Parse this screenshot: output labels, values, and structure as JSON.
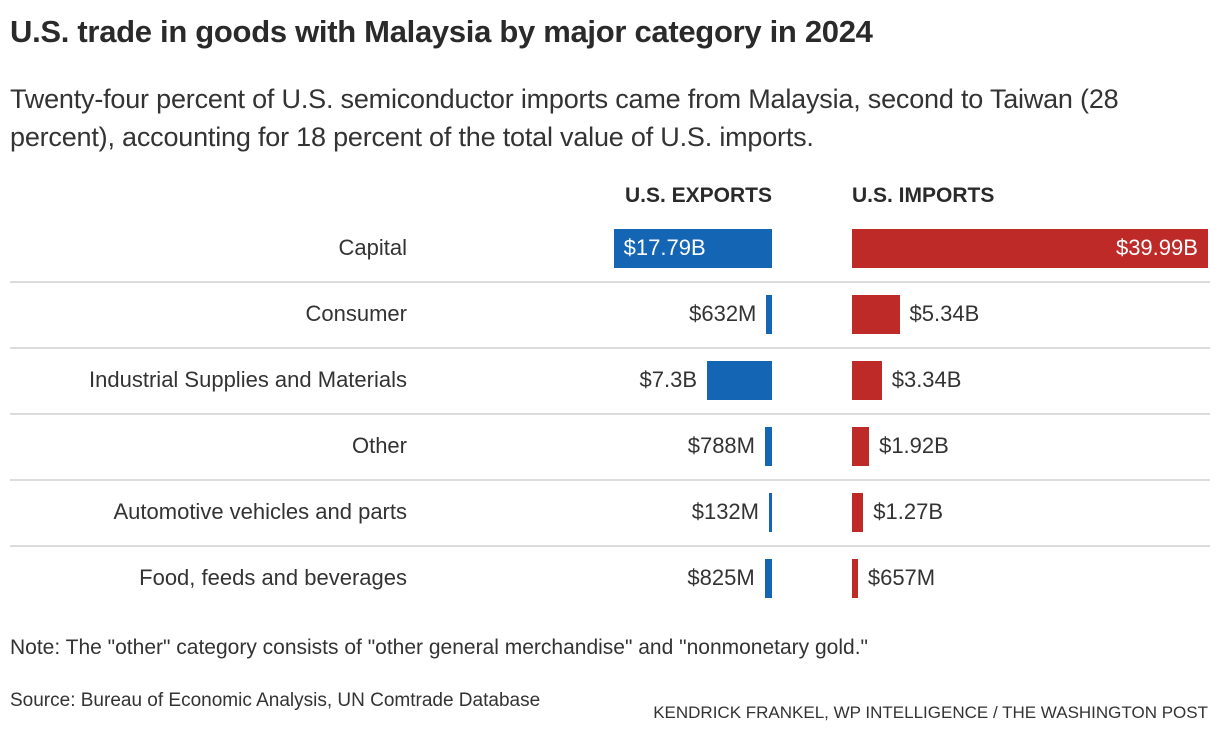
{
  "header": {
    "title": "U.S. trade in goods with Malaysia by major category in 2024",
    "subtitle": "Twenty-four percent of U.S. semiconductor imports came from Malaysia, second to Taiwan (28 percent), accounting for 18 percent of the total value of U.S. imports."
  },
  "colors": {
    "exports": "#1565b5",
    "imports": "#be2a27"
  },
  "chart_data": {
    "type": "bar",
    "orientation": "horizontal",
    "title": "U.S. trade in goods with Malaysia by major category in 2024",
    "units": "billions USD",
    "categories": [
      "Capital",
      "Consumer",
      "Industrial Supplies and Materials",
      "Other",
      "Automotive vehicles and parts",
      "Food, feeds and beverages"
    ],
    "series": [
      {
        "name": "U.S. EXPORTS",
        "direction": "leftward",
        "values": [
          17.79,
          0.632,
          7.3,
          0.788,
          0.132,
          0.825
        ],
        "labels": [
          "$17.79B",
          "$632M",
          "$7.3B",
          "$788M",
          "$132M",
          "$825M"
        ]
      },
      {
        "name": "U.S. IMPORTS",
        "direction": "rightward",
        "values": [
          39.99,
          5.34,
          3.34,
          1.92,
          1.27,
          0.657
        ],
        "labels": [
          "$39.99B",
          "$5.34B",
          "$3.34B",
          "$1.92B",
          "$1.27B",
          "$657M"
        ]
      }
    ],
    "xlim": [
      0,
      40
    ],
    "grid": false,
    "legend": "column headers top"
  },
  "footer": {
    "note": "Note: The \"other\" category consists of \"other general merchandise\" and \"nonmonetary gold.\"",
    "source": "Source: Bureau of Economic Analysis, UN Comtrade Database",
    "credit": "KENDRICK FRANKEL, WP INTELLIGENCE / THE WASHINGTON POST"
  }
}
